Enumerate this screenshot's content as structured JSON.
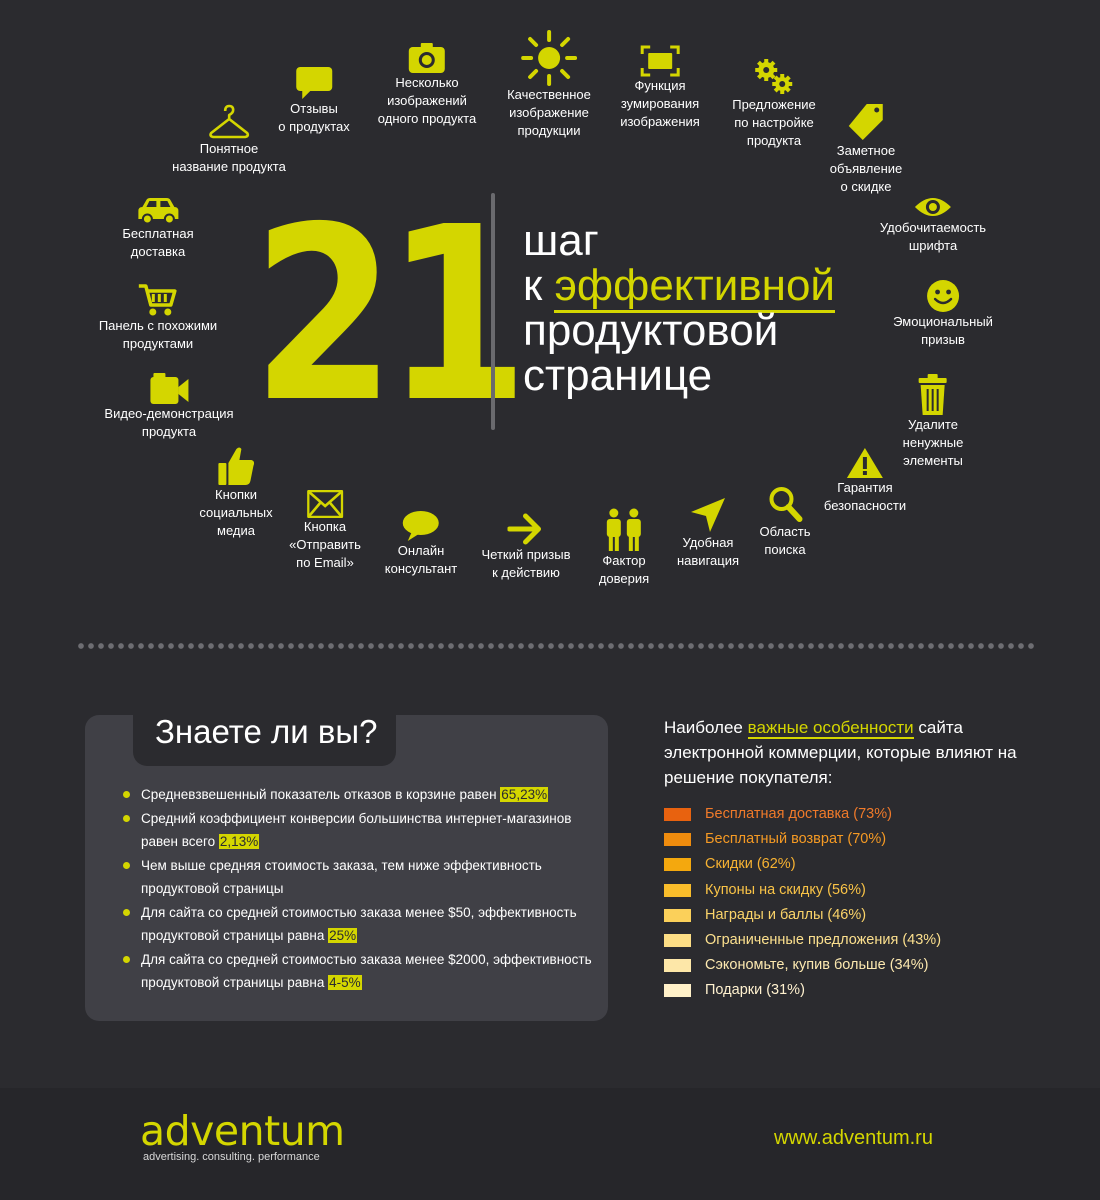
{
  "headline": {
    "number": "21",
    "line1": "шаг",
    "line2_prefix": "к ",
    "line2_highlight": "эффективной",
    "line3": "продуктовой",
    "line4": "странице"
  },
  "steps": {
    "reviews": "Отзывы\nо продуктах",
    "multi_images": "Несколько\nизображений\nодного продукта",
    "quality_image": "Качественное\nизображение\nпродукции",
    "zoom": "Функция\nзумирования\nизображения",
    "customization": "Предложение\nпо настройке\nпродукта",
    "discount": "Заметное\nобъявление\nо скидке",
    "readability": "Удобочитаемость\nшрифта",
    "emotional": "Эмоциональный\nпризыв",
    "remove": "Удалите\nненужные\nэлементы",
    "security": "Гарантия\nбезопасности",
    "search": "Область\nпоиска",
    "navigation": "Удобная\nнавигация",
    "trust": "Фактор\nдоверия",
    "cta": "Четкий призыв\nк действию",
    "consultant": "Онлайн\nконсультант",
    "email": "Кнопка\n«Отправить\nпо Email»",
    "social": "Кнопки\nсоциальных\nмедиа",
    "video": "Видео-демонстрация\nпродукта",
    "similar": "Панель с похожими\nпродуктами",
    "delivery": "Бесплатная\nдоставка",
    "name": "Понятное\nназвание продукта"
  },
  "icons": {
    "reviews": "speech-bubble-icon",
    "multi_images": "camera-icon",
    "quality_image": "sun-icon",
    "zoom": "zoom-frame-icon",
    "customization": "gears-icon",
    "discount": "price-tag-icon",
    "readability": "eye-icon",
    "emotional": "smiley-icon",
    "remove": "trash-icon",
    "security": "warning-icon",
    "search": "magnifier-icon",
    "navigation": "cursor-arrow-icon",
    "trust": "people-icon",
    "cta": "right-arrow-icon",
    "consultant": "chat-bubble-icon",
    "email": "envelope-icon",
    "social": "thumbs-up-icon",
    "video": "video-camera-icon",
    "similar": "cart-icon",
    "delivery": "car-icon",
    "name": "hanger-icon"
  },
  "did_you_know": {
    "title": "Знаете ли вы?",
    "facts": [
      {
        "text": "Средневзвешенный показатель отказов в корзине равен ",
        "value": "65,23%"
      },
      {
        "text": "Средний коэффициент конверсии большинства интернет-магазинов равен всего ",
        "value": "2,13%"
      },
      {
        "text": "Чем выше средняя стоимость заказа, тем ниже эффективность продуктовой страницы",
        "value": ""
      },
      {
        "text": "Для сайта со средней стоимостью заказа менее $50, эффективность продуктовой страницы равна ",
        "value": "25%"
      },
      {
        "text": "Для сайта со средней стоимостью заказа менее $2000, эффективность продуктовой страницы равна ",
        "value": "4-5%"
      }
    ]
  },
  "features": {
    "heading_pre": "Наиболее ",
    "heading_highlight": "важные особенности",
    "heading_post": " сайта электронной коммерции, которые влияют на решение покупателя:",
    "items": [
      {
        "label": "Бесплатная доставка (73%)",
        "color": "#e8620f",
        "text_color": "#f07a2a"
      },
      {
        "label": "Бесплатный возврат (70%)",
        "color": "#ef8c0e",
        "text_color": "#f59a24"
      },
      {
        "label": "Скидки (62%)",
        "color": "#f4a80e",
        "text_color": "#f7b232"
      },
      {
        "label": "Купоны на скидку (56%)",
        "color": "#f9bd2b",
        "text_color": "#f9c347"
      },
      {
        "label": "Награды и баллы (46%)",
        "color": "#fbd05a",
        "text_color": "#fbd46a"
      },
      {
        "label": "Ограниченные предложения (43%)",
        "color": "#fcdd85",
        "text_color": "#fce08e"
      },
      {
        "label": "Сэкономьте, купив больше (34%)",
        "color": "#fde7a8",
        "text_color": "#fde9b0"
      },
      {
        "label": "Подарки (31%)",
        "color": "#fff0c8",
        "text_color": "#fff1cf"
      }
    ]
  },
  "footer": {
    "logo": "adventum",
    "tagline": "advertising. consulting. performance",
    "website": "www.adventum.ru"
  },
  "colors": {
    "accent": "#d4d600",
    "background": "#2b2b2f",
    "panel": "#404046",
    "footer": "#26262a"
  }
}
